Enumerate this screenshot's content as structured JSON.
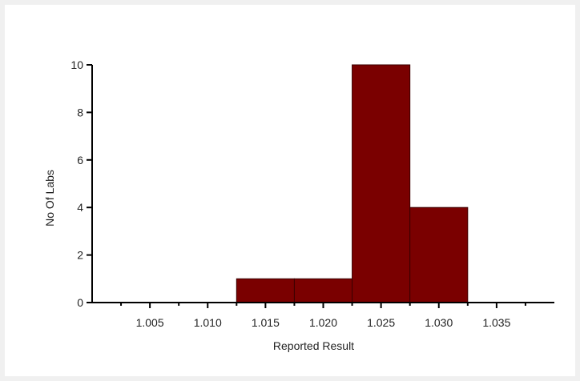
{
  "chart_data": {
    "type": "bar",
    "subtype": "histogram",
    "title": "",
    "xlabel": "Reported Result",
    "ylabel": "No Of Labs",
    "xlim": [
      1.0,
      1.04
    ],
    "ylim": [
      0,
      10
    ],
    "x_ticks": [
      1.005,
      1.01,
      1.015,
      1.02,
      1.025,
      1.03,
      1.035
    ],
    "x_tick_labels": [
      "1.005",
      "1.010",
      "1.015",
      "1.020",
      "1.025",
      "1.030",
      "1.035"
    ],
    "x_minor_ticks": [
      1.0025,
      1.0075,
      1.0125,
      1.0175,
      1.0225,
      1.0275,
      1.0325,
      1.0375
    ],
    "y_ticks": [
      0,
      2,
      4,
      6,
      8,
      10
    ],
    "y_tick_labels": [
      "0",
      "2",
      "4",
      "6",
      "8",
      "10"
    ],
    "bins": [
      {
        "start": 1.0125,
        "end": 1.0175,
        "value": 1
      },
      {
        "start": 1.0175,
        "end": 1.0225,
        "value": 1
      },
      {
        "start": 1.0225,
        "end": 1.0275,
        "value": 10
      },
      {
        "start": 1.0275,
        "end": 1.0325,
        "value": 4
      }
    ],
    "grid": false,
    "legend": "none",
    "colors": {
      "bar_fill": "#7a0000",
      "bar_stroke": "#3a0000",
      "axis": "#000000"
    }
  }
}
